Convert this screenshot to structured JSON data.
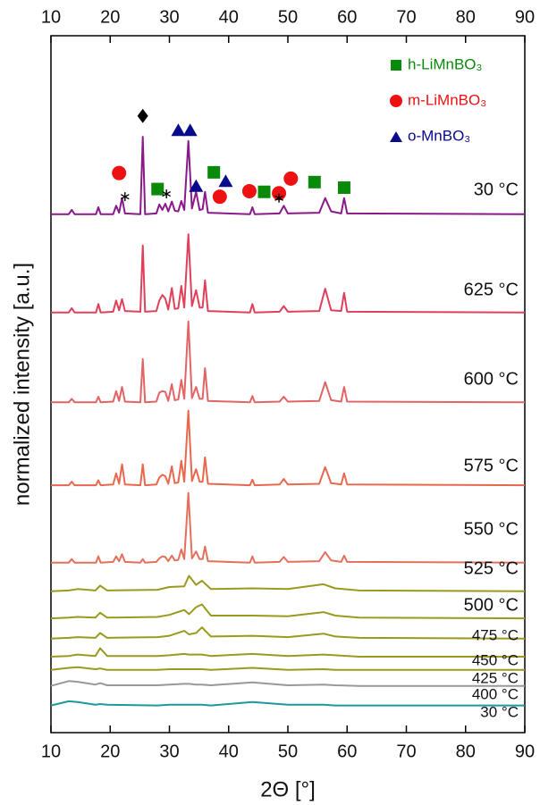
{
  "chart_data": {
    "type": "line",
    "xlabel": "2Θ [°]",
    "ylabel": "normalized intensity [a.u.]",
    "xlim": [
      10,
      90
    ],
    "xticks": [
      10,
      20,
      30,
      40,
      50,
      60,
      70,
      80,
      90
    ],
    "ylim": [
      0,
      100
    ],
    "legend": "upper right",
    "series": [
      {
        "name": "30 °C",
        "color": "#8a1a8a",
        "x": [
          10,
          13,
          13.5,
          14,
          17.6,
          18,
          18.4,
          20.5,
          21,
          21.5,
          22,
          22.5,
          25.1,
          25.5,
          25.9,
          27.8,
          28.3,
          28.8,
          29.3,
          29.8,
          30.4,
          30.9,
          31.5,
          32,
          32.5,
          33.2,
          33.8,
          34.5,
          35.1,
          35.6,
          36,
          36.5,
          43.6,
          44,
          44.4,
          48.6,
          49.3,
          50,
          55.3,
          56.3,
          57.3,
          59,
          59.5,
          60,
          90
        ],
        "values": [
          74.4,
          74.4,
          75.0,
          74.4,
          74.4,
          75.4,
          74.4,
          74.4,
          75.6,
          74.6,
          76.7,
          74.5,
          74.4,
          85.5,
          74.4,
          74.5,
          75.8,
          75.0,
          75.9,
          74.8,
          76.2,
          74.9,
          74.8,
          76.3,
          75.0,
          84.9,
          75.2,
          77.6,
          75.0,
          75.1,
          77.6,
          74.6,
          74.4,
          75.4,
          74.4,
          74.5,
          75.6,
          74.5,
          74.6,
          76.7,
          74.8,
          74.5,
          76.7,
          74.5,
          74.4
        ]
      },
      {
        "name": "625 °C",
        "color": "#e0405a",
        "x": [
          10,
          13,
          13.5,
          14,
          17.6,
          18,
          18.4,
          20.5,
          21,
          21.5,
          22,
          22.5,
          25.1,
          25.5,
          25.9,
          27.8,
          28.3,
          28.8,
          29.3,
          29.8,
          30.4,
          30.9,
          31.5,
          32,
          32.5,
          33.2,
          33.8,
          34.5,
          35.1,
          35.6,
          36,
          36.5,
          43.6,
          44,
          44.4,
          48.6,
          49.3,
          50,
          55.3,
          56.3,
          57.3,
          59,
          59.5,
          60,
          90
        ],
        "values": [
          60.3,
          60.3,
          60.9,
          60.3,
          60.3,
          61.5,
          60.3,
          60.4,
          62.0,
          60.6,
          62.2,
          60.5,
          60.4,
          69.9,
          60.4,
          60.5,
          62.0,
          62.8,
          62.3,
          60.7,
          63.8,
          60.8,
          60.9,
          64.1,
          61.0,
          71.5,
          61.2,
          63.5,
          61.0,
          61.0,
          64.9,
          60.5,
          60.3,
          61.5,
          60.3,
          60.4,
          61.2,
          60.4,
          60.5,
          63.7,
          60.6,
          60.5,
          63.1,
          60.4,
          60.3
        ]
      },
      {
        "name": "600 °C",
        "color": "#e26464",
        "x": [
          10,
          13,
          13.5,
          14,
          17.6,
          18,
          18.4,
          20.5,
          21,
          21.5,
          22,
          22.5,
          25.1,
          25.5,
          25.9,
          27.8,
          28.3,
          28.8,
          29.3,
          29.8,
          30.4,
          30.9,
          31.5,
          32,
          32.5,
          33.2,
          33.8,
          34.5,
          35.1,
          35.6,
          36,
          36.5,
          43.6,
          44,
          44.4,
          48.6,
          49.3,
          50,
          55.3,
          56.3,
          57.3,
          59,
          59.5,
          60,
          90
        ],
        "values": [
          47.4,
          47.4,
          47.9,
          47.4,
          47.4,
          48.2,
          47.4,
          47.5,
          49.0,
          47.6,
          49.6,
          47.5,
          47.4,
          53.6,
          47.4,
          47.5,
          48.8,
          49.0,
          48.9,
          47.6,
          50.0,
          47.7,
          47.8,
          50.6,
          47.9,
          59.0,
          48.0,
          49.6,
          47.9,
          47.9,
          52.3,
          47.6,
          47.4,
          48.3,
          47.4,
          47.5,
          48.2,
          47.5,
          47.6,
          50.3,
          47.7,
          47.5,
          49.6,
          47.5,
          47.4
        ]
      },
      {
        "name": "575 °C",
        "color": "#e8684e",
        "x": [
          10,
          13,
          13.5,
          14,
          17.6,
          18,
          18.4,
          20.5,
          21,
          21.5,
          22,
          22.5,
          25.1,
          25.5,
          25.9,
          27.8,
          28.3,
          28.8,
          29.3,
          29.8,
          30.4,
          30.9,
          31.5,
          32,
          32.5,
          33.2,
          33.8,
          34.5,
          35.1,
          35.6,
          36,
          36.5,
          43.6,
          44,
          44.4,
          48.6,
          49.3,
          50,
          55.3,
          56.3,
          57.3,
          59,
          59.5,
          60,
          90
        ],
        "values": [
          35.5,
          35.5,
          36.0,
          35.5,
          35.5,
          36.2,
          35.5,
          35.6,
          37.2,
          35.7,
          38.5,
          35.6,
          35.5,
          38.5,
          35.5,
          35.6,
          36.6,
          37.0,
          36.8,
          35.7,
          38.2,
          35.8,
          35.9,
          39.0,
          36.0,
          46.2,
          36.1,
          37.8,
          36.0,
          36.0,
          39.5,
          35.7,
          35.5,
          36.3,
          35.5,
          35.6,
          36.4,
          35.6,
          35.7,
          38.1,
          35.8,
          35.6,
          37.2,
          35.6,
          35.5
        ]
      },
      {
        "name": "550 °C",
        "color": "#e4705c",
        "x": [
          10,
          13,
          13.5,
          14,
          17.6,
          18,
          18.4,
          20.5,
          21,
          21.5,
          22,
          22.5,
          25.1,
          25.5,
          25.9,
          27.8,
          28.3,
          28.8,
          29.3,
          29.8,
          30.4,
          30.9,
          31.5,
          32,
          32.5,
          33.2,
          33.8,
          34.5,
          35.1,
          35.6,
          36,
          36.5,
          43.6,
          44,
          44.4,
          48.6,
          49.3,
          50,
          55.3,
          56.3,
          57.3,
          59,
          59.5,
          60,
          90
        ],
        "values": [
          24.4,
          24.4,
          24.9,
          24.4,
          24.4,
          25.3,
          24.4,
          24.5,
          25.3,
          24.6,
          25.6,
          24.5,
          24.4,
          24.9,
          24.4,
          24.5,
          25.0,
          25.3,
          25.2,
          24.6,
          25.4,
          24.7,
          24.8,
          26.3,
          24.9,
          34.4,
          25.0,
          26.0,
          24.9,
          24.9,
          26.7,
          24.6,
          24.4,
          25.3,
          24.4,
          24.5,
          25.2,
          24.5,
          24.6,
          25.9,
          24.7,
          24.5,
          25.4,
          24.5,
          24.4
        ]
      },
      {
        "name": "525 °C",
        "color": "#9a9a1e",
        "x": [
          10,
          13,
          14.5,
          17.5,
          18.3,
          19.5,
          28,
          30,
          32.5,
          33.3,
          34.5,
          35.5,
          37,
          44,
          50,
          56,
          58,
          62,
          90
        ],
        "values": [
          20.3,
          20.4,
          20.6,
          20.4,
          21.1,
          20.4,
          20.5,
          20.9,
          21.0,
          22.5,
          21.2,
          21.8,
          20.6,
          20.7,
          20.6,
          21.3,
          20.7,
          20.4,
          20.3
        ]
      },
      {
        "name": "500 °C",
        "color": "#9a9a1e",
        "x": [
          10,
          13,
          14.5,
          17.5,
          18.3,
          19.5,
          28,
          30,
          32.5,
          33.3,
          34.5,
          35.5,
          37,
          44,
          50,
          56,
          58,
          62,
          90
        ],
        "values": [
          16.4,
          16.5,
          16.6,
          16.5,
          17.2,
          16.5,
          16.6,
          16.9,
          17.6,
          17.0,
          18.0,
          18.4,
          16.8,
          16.8,
          16.7,
          17.3,
          16.8,
          16.5,
          16.4
        ]
      },
      {
        "name": "475 °C",
        "color": "#9a9a1e",
        "x": [
          10,
          13,
          14.5,
          17.5,
          18.3,
          19.5,
          28,
          30,
          32.5,
          33.3,
          34.5,
          35.5,
          37,
          44,
          50,
          56,
          58,
          62,
          90
        ],
        "values": [
          13.5,
          13.6,
          13.7,
          13.6,
          14.3,
          13.6,
          13.7,
          13.9,
          14.6,
          14.1,
          14.3,
          15.1,
          13.8,
          13.9,
          13.7,
          14.2,
          13.8,
          13.6,
          13.5
        ]
      },
      {
        "name": "450 °C",
        "color": "#9a9a1e",
        "x": [
          10,
          13,
          14.5,
          17.5,
          18.3,
          19.5,
          28,
          30,
          32.5,
          33.3,
          34.5,
          35.5,
          37,
          44,
          50,
          56,
          58,
          62,
          90
        ],
        "values": [
          10.9,
          11.0,
          11.2,
          11.0,
          12.1,
          11.0,
          11.0,
          11.1,
          11.3,
          11.2,
          11.2,
          11.2,
          11.0,
          11.3,
          11.0,
          11.2,
          11.1,
          10.9,
          10.9
        ]
      },
      {
        "name": "425 °C",
        "color": "#9a9a1e",
        "x": [
          10,
          13,
          14.5,
          17.5,
          18.3,
          19.5,
          28,
          30,
          32.5,
          33.3,
          34.5,
          35.5,
          37,
          44,
          50,
          56,
          58,
          62,
          90
        ],
        "values": [
          9.0,
          9.3,
          9.4,
          9.1,
          9.2,
          9.0,
          9.0,
          9.1,
          9.1,
          9.1,
          9.1,
          9.1,
          9.0,
          9.3,
          9.0,
          9.1,
          9.0,
          9.0,
          9.0
        ]
      },
      {
        "name": "400 °C",
        "color": "#999999",
        "x": [
          10,
          13,
          14.5,
          17.5,
          18.3,
          19.5,
          28,
          30,
          32.5,
          33.3,
          34.5,
          35.5,
          37,
          44,
          50,
          56,
          58,
          62,
          90
        ],
        "values": [
          6.7,
          7.4,
          7.3,
          6.9,
          7.1,
          6.8,
          6.8,
          6.9,
          7.0,
          7.0,
          6.9,
          6.9,
          6.8,
          7.2,
          6.8,
          6.9,
          6.8,
          6.7,
          6.7
        ]
      },
      {
        "name": "30 °C",
        "color": "#1a9a9a",
        "x": [
          10,
          13,
          14.5,
          17.5,
          18.3,
          19.5,
          28,
          30,
          32.5,
          33.3,
          34.5,
          35.5,
          37,
          44,
          50,
          56,
          58,
          62,
          90
        ],
        "values": [
          3.9,
          4.5,
          4.4,
          4.0,
          4.1,
          4.0,
          3.9,
          4.0,
          4.0,
          4.0,
          4.0,
          4.0,
          3.9,
          4.4,
          4.0,
          4.0,
          3.9,
          3.9,
          3.9
        ]
      }
    ],
    "markers": [
      {
        "name": "h-LiMnBO₃",
        "symbol": "square",
        "color": "#0a8a0a",
        "x": [
          28,
          37.5,
          46,
          54.5,
          59.5
        ],
        "values": [
          78.0,
          80.4,
          77.6,
          79.0,
          78.2
        ]
      },
      {
        "name": "m-LiMnBO₃",
        "symbol": "circle",
        "color": "#ee1111",
        "x": [
          21.5,
          38.5,
          43.5,
          48.5,
          50.5
        ],
        "values": [
          80.3,
          76.9,
          77.7,
          77.4,
          79.5
        ]
      },
      {
        "name": "o-MnBO₃",
        "symbol": "triangle",
        "color": "#0a0a8c",
        "x": [
          31.5,
          33.5,
          34.5,
          39.5
        ],
        "values": [
          86.5,
          86.5,
          78.5,
          79.2
        ]
      },
      {
        "symbol": "diamond",
        "color": "#000000",
        "x": [
          25.5
        ],
        "values": [
          88.5
        ]
      },
      {
        "symbol": "asterisk",
        "color": "#000000",
        "x": [
          22.5,
          29.5,
          48.5
        ],
        "values": [
          76.9,
          77.3,
          76.7
        ]
      }
    ]
  }
}
